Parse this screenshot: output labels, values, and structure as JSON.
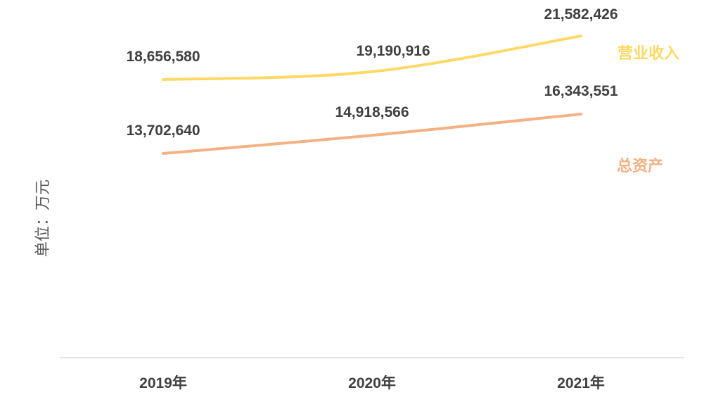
{
  "chart_data": {
    "type": "line",
    "categories": [
      "2019年",
      "2020年",
      "2021年"
    ],
    "series": [
      {
        "name": "营业收入",
        "values": [
          18656580,
          19190916,
          21582426
        ],
        "labels": [
          "18,656,580",
          "19,190,916",
          "21,582,426"
        ],
        "color": "#FFD966"
      },
      {
        "name": "总资产",
        "values": [
          13702640,
          14918566,
          16343551
        ],
        "labels": [
          "13,702,640",
          "14,918,566",
          "16,343,551"
        ],
        "color": "#F4B183"
      }
    ],
    "ylabel": "单位：万元",
    "ylim": [
      0,
      24000000
    ],
    "grid": false,
    "legend": "right, inline at line ends",
    "smooth": true
  },
  "colors": {
    "axis": "#D9D9D9",
    "text": "#404040",
    "ylabel": "#595959"
  }
}
